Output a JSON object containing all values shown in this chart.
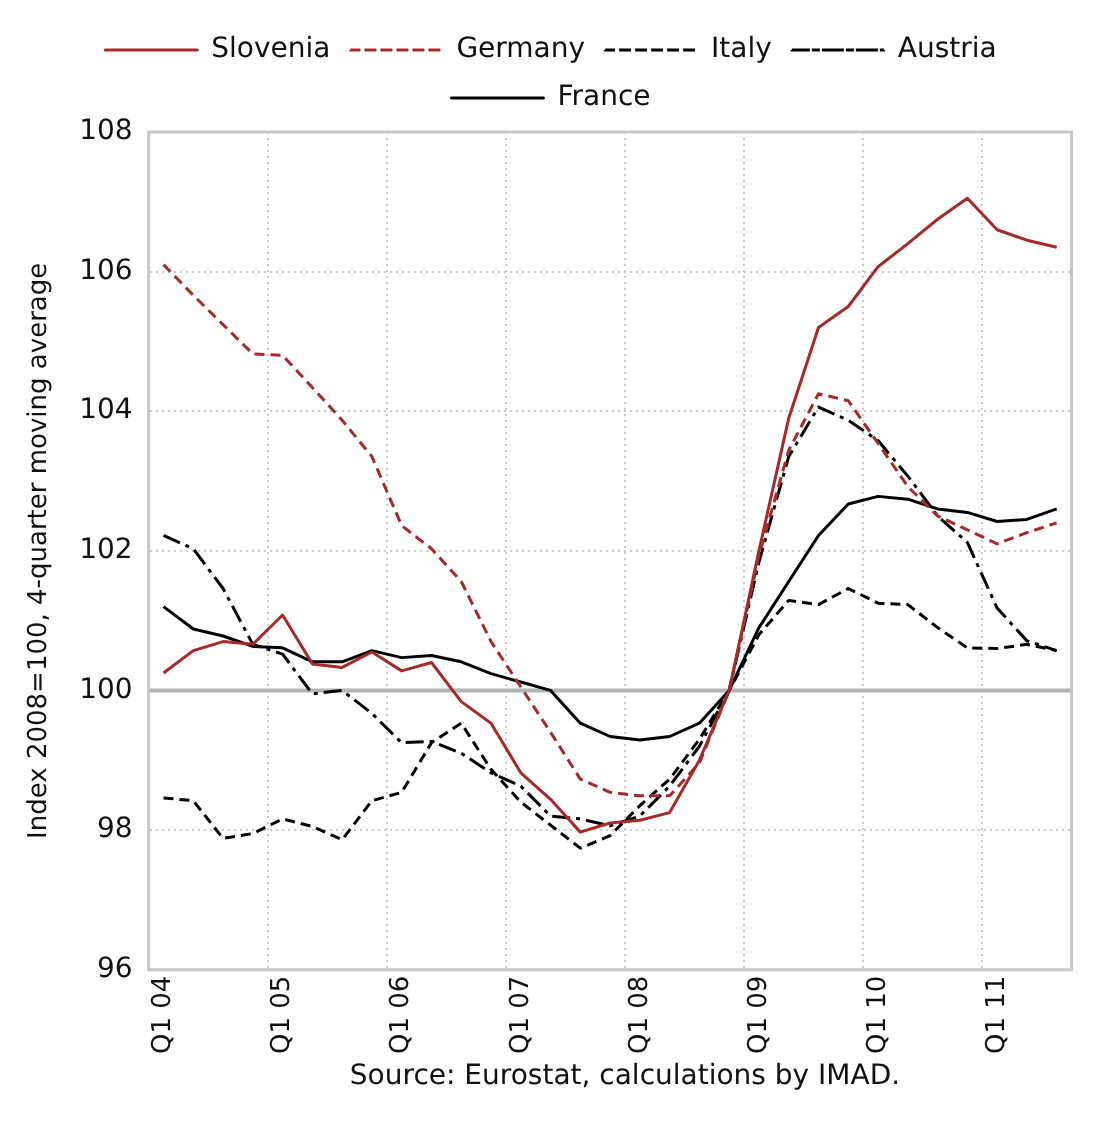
{
  "chart_data": {
    "type": "line",
    "ylabel": "Index 2008=100, 4-quarter moving average",
    "annotations": [
      "Source: Eurostat, calculations by IMAD."
    ],
    "categories": [
      "Q1 04",
      null,
      null,
      null,
      "Q1 05",
      null,
      null,
      null,
      "Q1 06",
      null,
      null,
      null,
      "Q1 07",
      null,
      null,
      null,
      "Q1 08",
      null,
      null,
      null,
      "Q1 09",
      null,
      null,
      null,
      "Q1 10",
      null,
      null,
      null,
      "Q1 11",
      null,
      null
    ],
    "series": [
      {
        "name": "Slovenia",
        "color": "#a52a2a",
        "line_style": "solid",
        "values": [
          100.25,
          100.57,
          100.7,
          100.66,
          101.08,
          100.38,
          100.33,
          100.55,
          100.28,
          100.4,
          99.84,
          99.53,
          98.82,
          98.44,
          97.97,
          98.1,
          98.14,
          98.25,
          99.0,
          100.0,
          102.0,
          103.9,
          105.2,
          105.5,
          106.07,
          106.4,
          106.75,
          107.05,
          106.6,
          106.45,
          106.35
        ]
      },
      {
        "name": "Germany",
        "color": "#a52a2a",
        "line_style": "dashed",
        "values": [
          106.1,
          105.66,
          105.24,
          104.82,
          104.8,
          104.34,
          103.87,
          103.35,
          102.36,
          102.03,
          101.56,
          100.7,
          100.05,
          99.4,
          98.73,
          98.54,
          98.49,
          98.49,
          98.96,
          100.0,
          101.93,
          103.44,
          104.25,
          104.15,
          103.54,
          102.92,
          102.5,
          102.3,
          102.1,
          102.26,
          102.4
        ]
      },
      {
        "name": "Italy",
        "color": "#000000",
        "line_style": "dashed",
        "values": [
          98.46,
          98.42,
          97.88,
          97.95,
          98.16,
          98.05,
          97.86,
          98.42,
          98.54,
          99.25,
          99.53,
          98.87,
          98.4,
          98.07,
          97.74,
          97.92,
          98.35,
          98.73,
          99.3,
          100.0,
          100.8,
          101.29,
          101.23,
          101.46,
          101.25,
          101.23,
          100.9,
          100.61,
          100.6,
          100.66,
          100.57
        ]
      },
      {
        "name": "Austria",
        "color": "#000000",
        "line_style": "dashdot",
        "values": [
          102.22,
          102.03,
          101.46,
          100.66,
          100.52,
          99.95,
          100.0,
          99.67,
          99.25,
          99.27,
          99.1,
          98.82,
          98.63,
          98.2,
          98.16,
          98.06,
          98.2,
          98.63,
          99.2,
          100.0,
          101.84,
          103.35,
          104.06,
          103.87,
          103.58,
          103.07,
          102.5,
          102.12,
          101.18,
          100.71,
          100.57
        ]
      },
      {
        "name": "France",
        "color": "#000000",
        "line_style": "solid",
        "values": [
          101.2,
          100.88,
          100.78,
          100.63,
          100.61,
          100.41,
          100.41,
          100.57,
          100.47,
          100.5,
          100.41,
          100.24,
          100.12,
          100.0,
          99.53,
          99.34,
          99.29,
          99.34,
          99.53,
          100.0,
          100.9,
          101.56,
          102.22,
          102.67,
          102.78,
          102.74,
          102.6,
          102.55,
          102.42,
          102.45,
          102.6
        ]
      }
    ],
    "ylim": [
      96,
      108
    ],
    "yticks": [
      96,
      98,
      100,
      102,
      104,
      106,
      108
    ],
    "ref_lines": [
      {
        "axis": "y",
        "value": 100,
        "color": "#b4b4b4"
      }
    ],
    "grid": true,
    "legend": "top",
    "marker": "none"
  }
}
